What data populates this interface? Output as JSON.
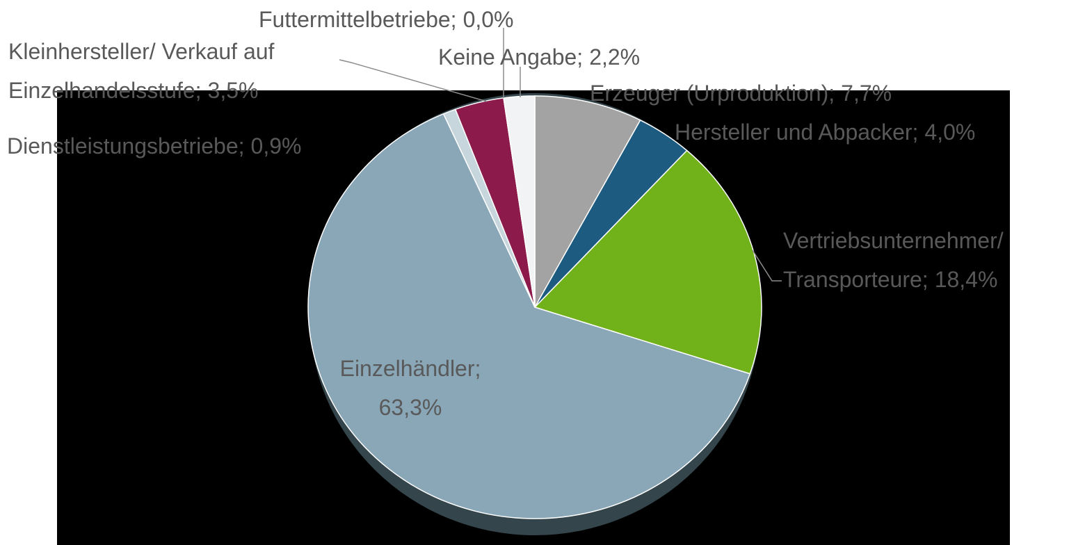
{
  "chart_data": {
    "type": "pie",
    "categories": [
      "Erzeuger (Urproduktion);",
      "Hersteller und Abpacker;",
      "Vertriebsunternehmer/\nTransporteure;",
      "Einzelhändler;\n",
      "Dienstleistungsbetriebe;",
      "Kleinhersteller/ Verkauf auf\nEinzelhandelsstufe;",
      "Futtermittelbetriebe;",
      "Keine Angabe;"
    ],
    "values": [
      7.7,
      4.0,
      18.4,
      63.3,
      0.9,
      3.5,
      0.0,
      2.2
    ],
    "value_labels": [
      "7,7%",
      "4,0%",
      "18,4%",
      "63,3%",
      "0,9%",
      "3,5%",
      "0,0%",
      "2,2%"
    ],
    "colors": [
      "#a3a3a3",
      "#1d5b80",
      "#71b11a",
      "#8aa7b8",
      "#c7d5dc",
      "#8c1a4b",
      "#ffffff",
      "#f2f3f5"
    ]
  }
}
